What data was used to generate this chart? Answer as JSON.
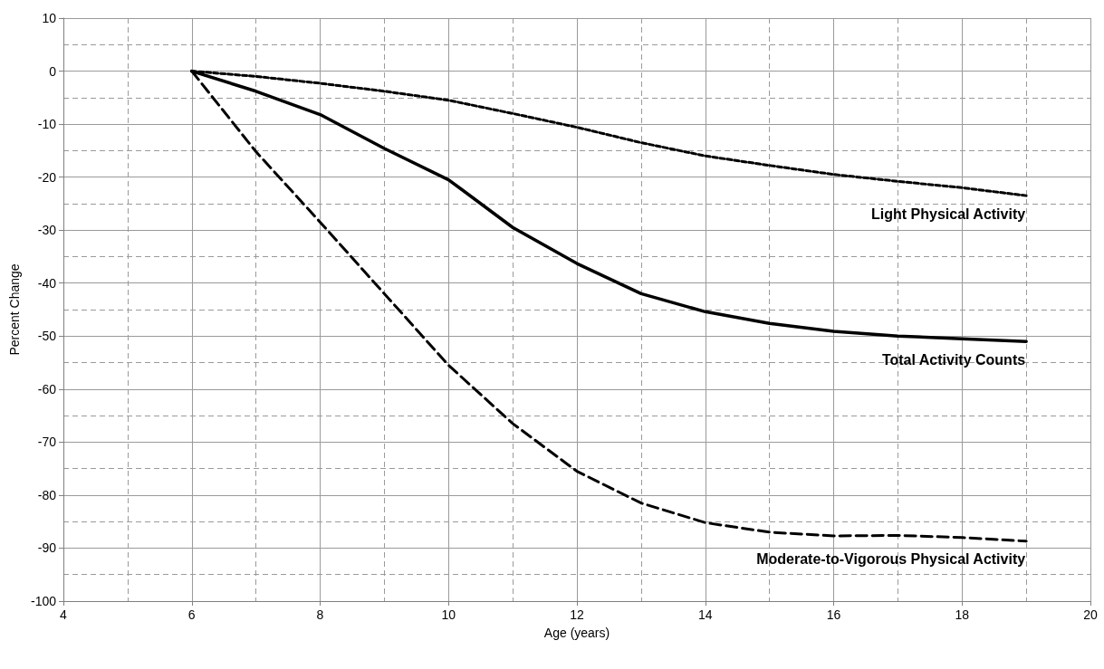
{
  "chart_data": {
    "type": "line",
    "xlabel": "Age (years)",
    "ylabel": "Percent Change",
    "x": [
      6,
      7,
      8,
      9,
      10,
      11,
      12,
      13,
      14,
      15,
      16,
      17,
      18,
      19
    ],
    "series": [
      {
        "name": "Light Physical Activity",
        "color": "#000000",
        "line_style": "dotted",
        "values": [
          0,
          -1,
          -2.3,
          -3.8,
          -5.5,
          -8,
          -10.6,
          -13.5,
          -16,
          -17.8,
          -19.5,
          -20.8,
          -22,
          -23.5
        ]
      },
      {
        "name": "Total Activity Counts",
        "color": "#000000",
        "line_style": "solid",
        "values": [
          0,
          -3.8,
          -8.2,
          -14.6,
          -20.5,
          -29.5,
          -36.3,
          -42,
          -45.4,
          -47.6,
          -49.1,
          -50,
          -50.5,
          -51
        ]
      },
      {
        "name": "Moderate-to-Vigorous Physical Activity",
        "color": "#000000",
        "line_style": "dashed",
        "values": [
          0,
          -15.2,
          -28.5,
          -42,
          -55.5,
          -66.5,
          -75.5,
          -81.5,
          -85.2,
          -87,
          -87.7,
          -87.6,
          -88,
          -88.7
        ]
      }
    ],
    "xlim": [
      4,
      20
    ],
    "xticks": [
      4,
      {
        "value": 5,
        "label": null
      },
      6,
      {
        "value": 7,
        "label": null
      },
      8,
      {
        "value": 9,
        "label": null
      },
      10,
      {
        "value": 11,
        "label": null
      },
      12,
      {
        "value": 13,
        "label": null
      },
      14,
      {
        "value": 15,
        "label": null
      },
      16,
      {
        "value": 17,
        "label": null
      },
      18,
      {
        "value": 19,
        "label": null
      },
      20
    ],
    "ylim": [
      -100,
      10
    ],
    "yticks": [
      -100,
      {
        "value": -95,
        "label": null
      },
      -90,
      {
        "value": -85,
        "label": null
      },
      -80,
      {
        "value": -75,
        "label": null
      },
      -70,
      {
        "value": -65,
        "label": null
      },
      -60,
      {
        "value": -55,
        "label": null
      },
      -50,
      {
        "value": -45,
        "label": null
      },
      -40,
      {
        "value": -35,
        "label": null
      },
      -30,
      {
        "value": -25,
        "label": null
      },
      -20,
      {
        "value": -15,
        "label": null
      },
      -10,
      {
        "value": -5,
        "label": null
      },
      0,
      {
        "value": 5,
        "label": null
      },
      10
    ],
    "grid": true,
    "legend": false,
    "marker": "none"
  }
}
